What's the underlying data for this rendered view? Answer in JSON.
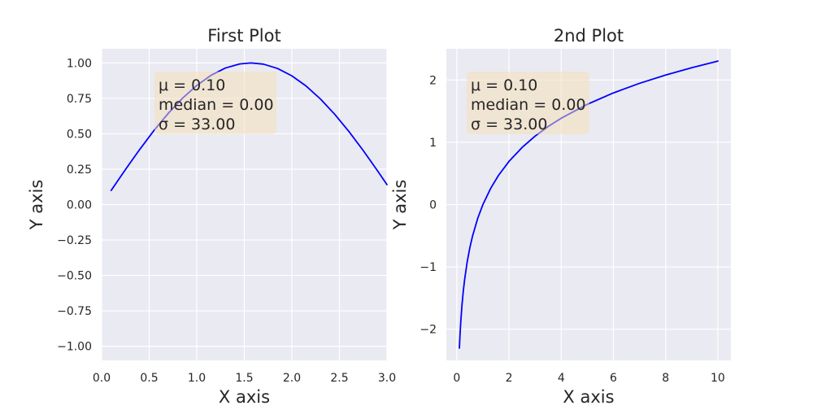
{
  "chart_data": [
    {
      "type": "line",
      "title": "First Plot",
      "xlabel": "X axis",
      "ylabel": "Y axis",
      "xlim": [
        0.0,
        3.0
      ],
      "ylim": [
        -1.1,
        1.1
      ],
      "xticks": [
        0.0,
        0.5,
        1.0,
        1.5,
        2.0,
        2.5,
        3.0
      ],
      "xtick_labels": [
        "0.0",
        "0.5",
        "1.0",
        "1.5",
        "2.0",
        "2.5",
        "3.0"
      ],
      "yticks": [
        1.0,
        0.75,
        0.5,
        0.25,
        0.0,
        -0.25,
        -0.5,
        -0.75,
        -1.0
      ],
      "ytick_labels": [
        "1.00",
        "0.75",
        "0.50",
        "0.25",
        "0.00",
        "−0.25",
        "−0.50",
        "−0.75",
        "−1.00"
      ],
      "grid": true,
      "series": [
        {
          "color": "#0000ff",
          "x": [
            0.1,
            0.25,
            0.4,
            0.55,
            0.7,
            0.85,
            1.0,
            1.15,
            1.3,
            1.45,
            1.57,
            1.7,
            1.85,
            2.0,
            2.15,
            2.3,
            2.45,
            2.6,
            2.75,
            2.9,
            3.0
          ],
          "y": [
            0.1,
            0.247,
            0.389,
            0.523,
            0.644,
            0.751,
            0.841,
            0.913,
            0.964,
            0.993,
            1.0,
            0.992,
            0.961,
            0.909,
            0.837,
            0.746,
            0.638,
            0.516,
            0.382,
            0.239,
            0.141
          ]
        }
      ],
      "annotation": {
        "lines": [
          "μ = 0.10",
          "median = 0.00",
          "σ = 33.00"
        ],
        "placement": "top-left"
      }
    },
    {
      "type": "line",
      "title": "2nd Plot",
      "xlabel": "X axis",
      "ylabel": "Y axis",
      "xlim": [
        -0.4,
        10.5
      ],
      "ylim": [
        -2.5,
        2.5
      ],
      "xticks": [
        0,
        2,
        4,
        6,
        8,
        10
      ],
      "xtick_labels": [
        "0",
        "2",
        "4",
        "6",
        "8",
        "10"
      ],
      "yticks": [
        2,
        1,
        0,
        -1,
        -2
      ],
      "ytick_labels": [
        "2",
        "1",
        "0",
        "−1",
        "−2"
      ],
      "grid": true,
      "series": [
        {
          "color": "#0000ff",
          "x": [
            0.1,
            0.12,
            0.15,
            0.2,
            0.25,
            0.3,
            0.4,
            0.5,
            0.6,
            0.8,
            1.0,
            1.3,
            1.6,
            2.0,
            2.5,
            3.0,
            3.5,
            4.0,
            5.0,
            6.0,
            7.0,
            8.0,
            9.0,
            10.0
          ],
          "y": [
            -2.303,
            -2.12,
            -1.897,
            -1.609,
            -1.386,
            -1.204,
            -0.916,
            -0.693,
            -0.511,
            -0.223,
            0.0,
            0.262,
            0.47,
            0.693,
            0.916,
            1.099,
            1.253,
            1.386,
            1.609,
            1.792,
            1.946,
            2.079,
            2.197,
            2.303
          ]
        }
      ],
      "annotation": {
        "lines": [
          "μ = 0.10",
          "median = 0.00",
          "σ = 33.00"
        ],
        "placement": "top-left"
      }
    }
  ]
}
